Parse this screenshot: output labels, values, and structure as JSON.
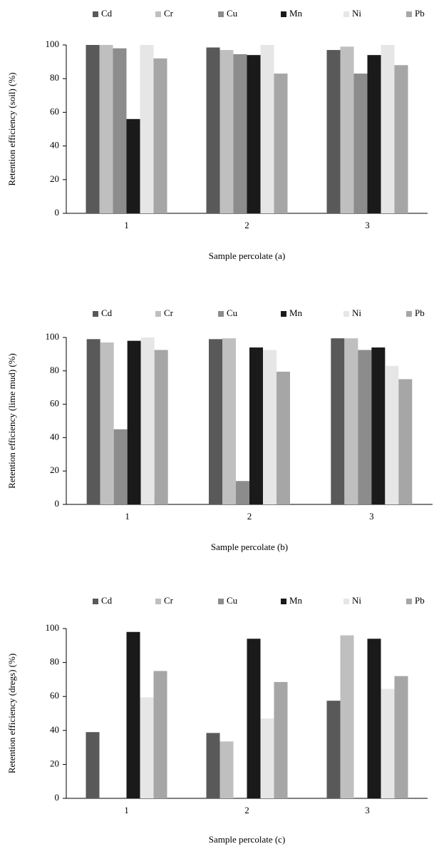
{
  "chart_data": [
    {
      "type": "bar",
      "ylabel": "Retention efficiency (soil)  (%)",
      "xlabel": "Sample percolate  (a)",
      "categories": [
        "1",
        "2",
        "3"
      ],
      "ylim": [
        0,
        100
      ],
      "yticks": [
        0,
        20,
        40,
        60,
        80,
        100
      ],
      "series": [
        {
          "name": "Cd",
          "color": "#595959",
          "values": [
            100,
            98.5,
            97
          ]
        },
        {
          "name": "Cr",
          "color": "#bfbfbf",
          "values": [
            100,
            97,
            99
          ]
        },
        {
          "name": "Cu",
          "color": "#8c8c8c",
          "values": [
            98,
            94.5,
            83
          ]
        },
        {
          "name": "Mn",
          "color": "#1a1a1a",
          "values": [
            56,
            94,
            94
          ]
        },
        {
          "name": "Ni",
          "color": "#e6e6e6",
          "values": [
            100,
            100,
            100
          ]
        },
        {
          "name": "Pb",
          "color": "#a6a6a6",
          "values": [
            92,
            83,
            88
          ]
        }
      ]
    },
    {
      "type": "bar",
      "ylabel": "Retention efficiency (lime mud) (%)",
      "xlabel": "Sample percolate (b)",
      "categories": [
        "1",
        "2",
        "3"
      ],
      "ylim": [
        0,
        100
      ],
      "yticks": [
        0,
        20,
        40,
        60,
        80,
        100
      ],
      "series": [
        {
          "name": "Cd",
          "color": "#595959",
          "values": [
            99,
            99,
            99.5
          ]
        },
        {
          "name": "Cr",
          "color": "#bfbfbf",
          "values": [
            97,
            99.5,
            99.5
          ]
        },
        {
          "name": "Cu",
          "color": "#8c8c8c",
          "values": [
            45,
            14,
            92.5
          ]
        },
        {
          "name": "Mn",
          "color": "#1a1a1a",
          "values": [
            98,
            94,
            94
          ]
        },
        {
          "name": "Ni",
          "color": "#e6e6e6",
          "values": [
            100,
            92.5,
            83
          ]
        },
        {
          "name": "Pb",
          "color": "#a6a6a6",
          "values": [
            92.5,
            79.5,
            75
          ]
        }
      ]
    },
    {
      "type": "bar",
      "ylabel": "Retention efficiency (dregs)  (%)",
      "xlabel": "Sample percolate  (c)",
      "categories": [
        "1",
        "2",
        "3"
      ],
      "ylim": [
        0,
        100
      ],
      "yticks": [
        0,
        20,
        40,
        60,
        80,
        100
      ],
      "series": [
        {
          "name": "Cd",
          "color": "#595959",
          "values": [
            39,
            38.5,
            57.5
          ]
        },
        {
          "name": "Cr",
          "color": "#bfbfbf",
          "values": [
            0,
            33.5,
            96
          ]
        },
        {
          "name": "Cu",
          "color": "#8c8c8c",
          "values": [
            0,
            0,
            0
          ]
        },
        {
          "name": "Mn",
          "color": "#1a1a1a",
          "values": [
            98,
            94,
            94
          ]
        },
        {
          "name": "Ni",
          "color": "#e6e6e6",
          "values": [
            59.5,
            47,
            64.5
          ]
        },
        {
          "name": "Pb",
          "color": "#a6a6a6",
          "values": [
            75,
            68.5,
            72
          ]
        }
      ]
    }
  ]
}
